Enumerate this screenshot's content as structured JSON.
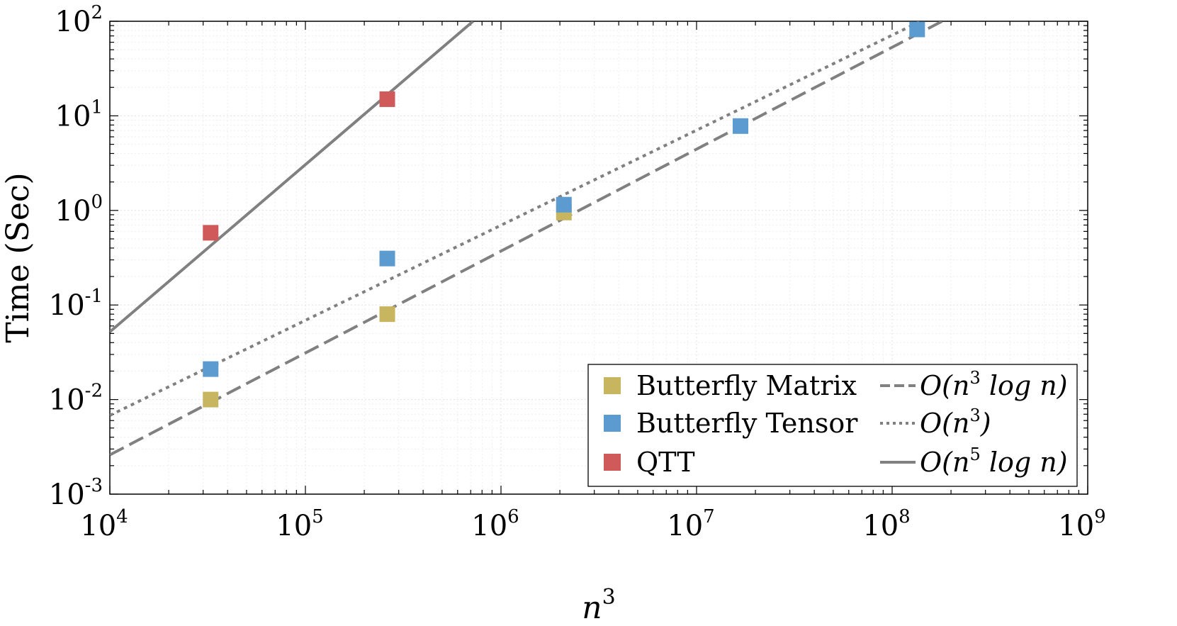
{
  "chart_data": {
    "type": "scatter",
    "title": "",
    "xlabel": "n^3",
    "ylabel": "Time (Sec)",
    "xscale": "log",
    "yscale": "log",
    "xlim": [
      10000,
      1000000000
    ],
    "ylim": [
      0.001,
      100
    ],
    "grid": true,
    "legend_position": "bottom-right",
    "x_ticks": [
      {
        "value": 10000,
        "base": "10",
        "exp": "4"
      },
      {
        "value": 100000,
        "base": "10",
        "exp": "5"
      },
      {
        "value": 1000000,
        "base": "10",
        "exp": "6"
      },
      {
        "value": 10000000,
        "base": "10",
        "exp": "7"
      },
      {
        "value": 100000000,
        "base": "10",
        "exp": "8"
      },
      {
        "value": 1000000000,
        "base": "10",
        "exp": "9"
      }
    ],
    "y_ticks": [
      {
        "value": 0.001,
        "base": "10",
        "exp": "-3"
      },
      {
        "value": 0.01,
        "base": "10",
        "exp": "-2"
      },
      {
        "value": 0.1,
        "base": "10",
        "exp": "-1"
      },
      {
        "value": 1,
        "base": "10",
        "exp": "0"
      },
      {
        "value": 10,
        "base": "10",
        "exp": "1"
      },
      {
        "value": 100,
        "base": "10",
        "exp": "2"
      }
    ],
    "series": [
      {
        "name": "Butterfly Matrix",
        "color": "#c8b560",
        "marker": "square",
        "x": [
          32768,
          262144,
          2097152
        ],
        "y": [
          0.01,
          0.08,
          0.95
        ]
      },
      {
        "name": "Butterfly Tensor",
        "color": "#5b9bd0",
        "marker": "square",
        "x": [
          32768,
          262144,
          2097152,
          16777216,
          134217728
        ],
        "y": [
          0.021,
          0.31,
          1.15,
          7.8,
          82
        ]
      },
      {
        "name": "QTT",
        "color": "#d05a5a",
        "marker": "square",
        "x": [
          32768,
          262144
        ],
        "y": [
          0.58,
          15
        ]
      }
    ],
    "reference_lines": [
      {
        "name": "O(n^3 log n)",
        "color": "#808080",
        "style": "dashed",
        "x": [
          10000,
          180000000
        ],
        "y": [
          0.0026,
          100
        ]
      },
      {
        "name": "O(n^3)",
        "color": "#808080",
        "style": "dotted",
        "x": [
          10000,
          140000000
        ],
        "y": [
          0.0068,
          100
        ]
      },
      {
        "name": "O(n^5 log n)",
        "color": "#808080",
        "style": "solid",
        "x": [
          10000,
          720000
        ],
        "y": [
          0.052,
          100
        ]
      }
    ],
    "legend_labels": {
      "butterfly_matrix": "Butterfly Matrix",
      "butterfly_tensor": "Butterfly Tensor",
      "qtt": "QTT",
      "ref_n3logn": {
        "pre": "O(n",
        "sup": "3",
        "post": " log n)"
      },
      "ref_n3": {
        "pre": "O(n",
        "sup": "3",
        "post": ")"
      },
      "ref_n5logn": {
        "pre": "O(n",
        "sup": "5",
        "post": " log n)"
      }
    },
    "axis_label_parts": {
      "x": {
        "base": "n",
        "sup": "3"
      },
      "y": "Time (Sec)"
    }
  }
}
